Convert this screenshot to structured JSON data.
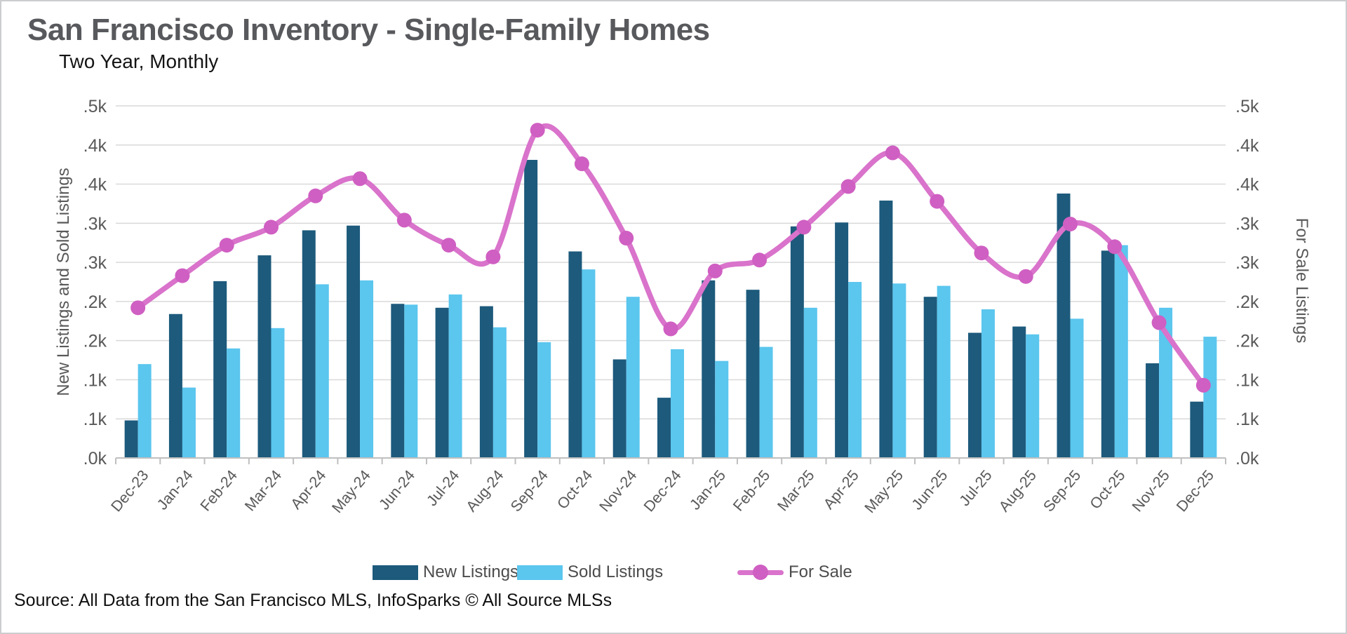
{
  "title": "San Francisco Inventory - Single-Family Homes",
  "subtitle": "Two Year, Monthly",
  "source": "Source: All Data from the San Francisco MLS, InfoSparks © All Source MLSs",
  "colors": {
    "new_listings": "#1d5a7c",
    "sold_listings": "#5bc6ee",
    "for_sale_line": "#d973cb",
    "for_sale_marker": "#cf5fc2",
    "gridline": "#d9d9d9",
    "axis_line": "#bfbfbf",
    "tick_text": "#595959",
    "axis_title_text": "#595959"
  },
  "legend": [
    {
      "label": "New Listings",
      "type": "bar",
      "color_key": "new_listings"
    },
    {
      "label": "Sold Listings",
      "type": "bar",
      "color_key": "sold_listings"
    },
    {
      "label": "For Sale",
      "type": "line",
      "color_key": "for_sale_line"
    }
  ],
  "chart_data": {
    "type": "bar",
    "subtype": "grouped bars with overlaid smooth line, dual y-axes",
    "categories": [
      "Dec-23",
      "Jan-24",
      "Feb-24",
      "Mar-24",
      "Apr-24",
      "May-24",
      "Jun-24",
      "Jul-24",
      "Aug-24",
      "Sep-24",
      "Oct-24",
      "Nov-24",
      "Dec-24",
      "Jan-25",
      "Feb-25",
      "Mar-25",
      "Apr-25",
      "May-25",
      "Jun-25",
      "Jul-25",
      "Aug-25",
      "Sep-25",
      "Oct-25",
      "Nov-25",
      "Dec-25"
    ],
    "series": [
      {
        "name": "New Listings",
        "type": "bar",
        "axis": "left",
        "values": [
          48,
          184,
          226,
          259,
          291,
          297,
          197,
          192,
          194,
          381,
          264,
          126,
          77,
          227,
          215,
          296,
          301,
          329,
          206,
          160,
          168,
          338,
          265,
          121,
          72
        ]
      },
      {
        "name": "Sold Listings",
        "type": "bar",
        "axis": "left",
        "values": [
          120,
          90,
          140,
          166,
          222,
          227,
          196,
          209,
          167,
          148,
          241,
          206,
          139,
          124,
          142,
          192,
          225,
          223,
          220,
          190,
          158,
          178,
          272,
          192,
          155
        ]
      },
      {
        "name": "For Sale",
        "type": "line",
        "axis": "right",
        "values": [
          192,
          233,
          272,
          295,
          335,
          357,
          304,
          272,
          257,
          419,
          376,
          281,
          165,
          239,
          253,
          295,
          347,
          390,
          328,
          262,
          232,
          299,
          270,
          173,
          93
        ]
      }
    ],
    "left_axis": {
      "title": "New Listings and Sold Listings",
      "range": [
        0,
        450
      ],
      "tick_values": [
        0,
        50,
        100,
        150,
        200,
        250,
        300,
        350,
        400,
        450
      ],
      "tick_labels": [
        ".0k",
        ".1k",
        ".1k",
        ".2k",
        ".2k",
        ".3k",
        ".3k",
        ".4k",
        ".4k",
        ".5k"
      ]
    },
    "right_axis": {
      "title": "For Sale Listings",
      "range": [
        0,
        450
      ],
      "tick_values": [
        0,
        50,
        100,
        150,
        200,
        250,
        300,
        350,
        400,
        450
      ],
      "tick_labels": [
        ".0k",
        ".1k",
        ".1k",
        ".2k",
        ".2k",
        ".3k",
        ".3k",
        ".4k",
        ".4k",
        ".5k"
      ]
    },
    "grid": true,
    "legend_position": "bottom",
    "x_tick_rotation_deg": -50
  }
}
